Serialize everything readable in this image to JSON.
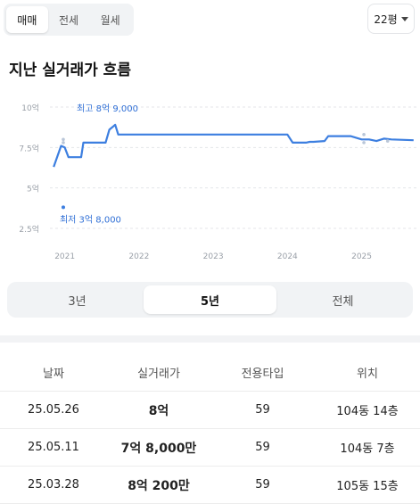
{
  "deal_tabs": [
    {
      "label": "매매",
      "active": true
    },
    {
      "label": "전세",
      "active": false
    },
    {
      "label": "월세",
      "active": false
    }
  ],
  "size_selector": {
    "value": "22평"
  },
  "section_title": "지난 실거래가 흐름",
  "chart_data": {
    "type": "line",
    "title": "",
    "xlabel": "",
    "ylabel": "",
    "y_unit": "억",
    "ylim": [
      2.5,
      10
    ],
    "y_ticks": [
      {
        "v": 10,
        "label": "10억"
      },
      {
        "v": 7.5,
        "label": "7.5억"
      },
      {
        "v": 5,
        "label": "5억"
      },
      {
        "v": 2.5,
        "label": "2.5억"
      }
    ],
    "x_ticks": [
      {
        "v": 2021.0,
        "label": "2021"
      },
      {
        "v": 2022.0,
        "label": "2022"
      },
      {
        "v": 2023.0,
        "label": "2023"
      },
      {
        "v": 2024.0,
        "label": "2024"
      },
      {
        "v": 2025.0,
        "label": "2025"
      }
    ],
    "xlim": [
      2020.8,
      2025.75
    ],
    "grid": "horizontal dashed",
    "series": [
      {
        "values_x": [
          2020.85,
          2020.95,
          2021.0,
          2021.05,
          2021.12,
          2021.22,
          2021.25,
          2021.55,
          2021.6,
          2021.68,
          2021.72,
          2022.0,
          2024.0,
          2024.07,
          2024.2,
          2024.25,
          2024.3,
          2024.35,
          2024.5,
          2024.55,
          2024.65,
          2024.72,
          2024.85,
          2025.0,
          2025.1,
          2025.2,
          2025.3,
          2025.4,
          2025.7
        ],
        "values_y": [
          6.3,
          7.6,
          7.5,
          6.9,
          6.9,
          6.9,
          7.8,
          7.8,
          8.6,
          8.9,
          8.3,
          8.3,
          8.3,
          7.8,
          7.8,
          7.8,
          7.85,
          7.85,
          7.9,
          8.2,
          8.2,
          8.2,
          8.2,
          8.0,
          8.0,
          7.9,
          8.05,
          8.0,
          7.95
        ]
      }
    ],
    "scatter": [
      {
        "x": 2020.98,
        "y": 8.0
      },
      {
        "x": 2020.98,
        "y": 7.8
      },
      {
        "x": 2025.03,
        "y": 8.3
      },
      {
        "x": 2025.03,
        "y": 7.8
      },
      {
        "x": 2025.35,
        "y": 7.9
      }
    ],
    "annotations": [
      {
        "label": "최고 8억 9,000",
        "x": 2021.68,
        "y": 8.9,
        "kind": "max"
      },
      {
        "label": "최저 3억 8,000",
        "x": 2020.98,
        "y": 3.8,
        "kind": "min"
      }
    ]
  },
  "range_tabs": [
    {
      "label": "3년",
      "active": false
    },
    {
      "label": "5년",
      "active": true
    },
    {
      "label": "전체",
      "active": false
    }
  ],
  "table": {
    "headers": [
      "날짜",
      "실거래가",
      "전용타입",
      "위치"
    ],
    "rows": [
      {
        "date": "25.05.26",
        "price": "8억",
        "type": "59",
        "location": "104동 14층"
      },
      {
        "date": "25.05.11",
        "price": "7억 8,000만",
        "type": "59",
        "location": "104동 7층"
      },
      {
        "date": "25.03.28",
        "price": "8억 200만",
        "type": "59",
        "location": "105동 15층"
      }
    ]
  },
  "colors": {
    "line": "#3d7fe0",
    "accent_text": "#2f6fd6",
    "grid": "#e4e6ea",
    "axis_text": "#9aa0a8"
  }
}
